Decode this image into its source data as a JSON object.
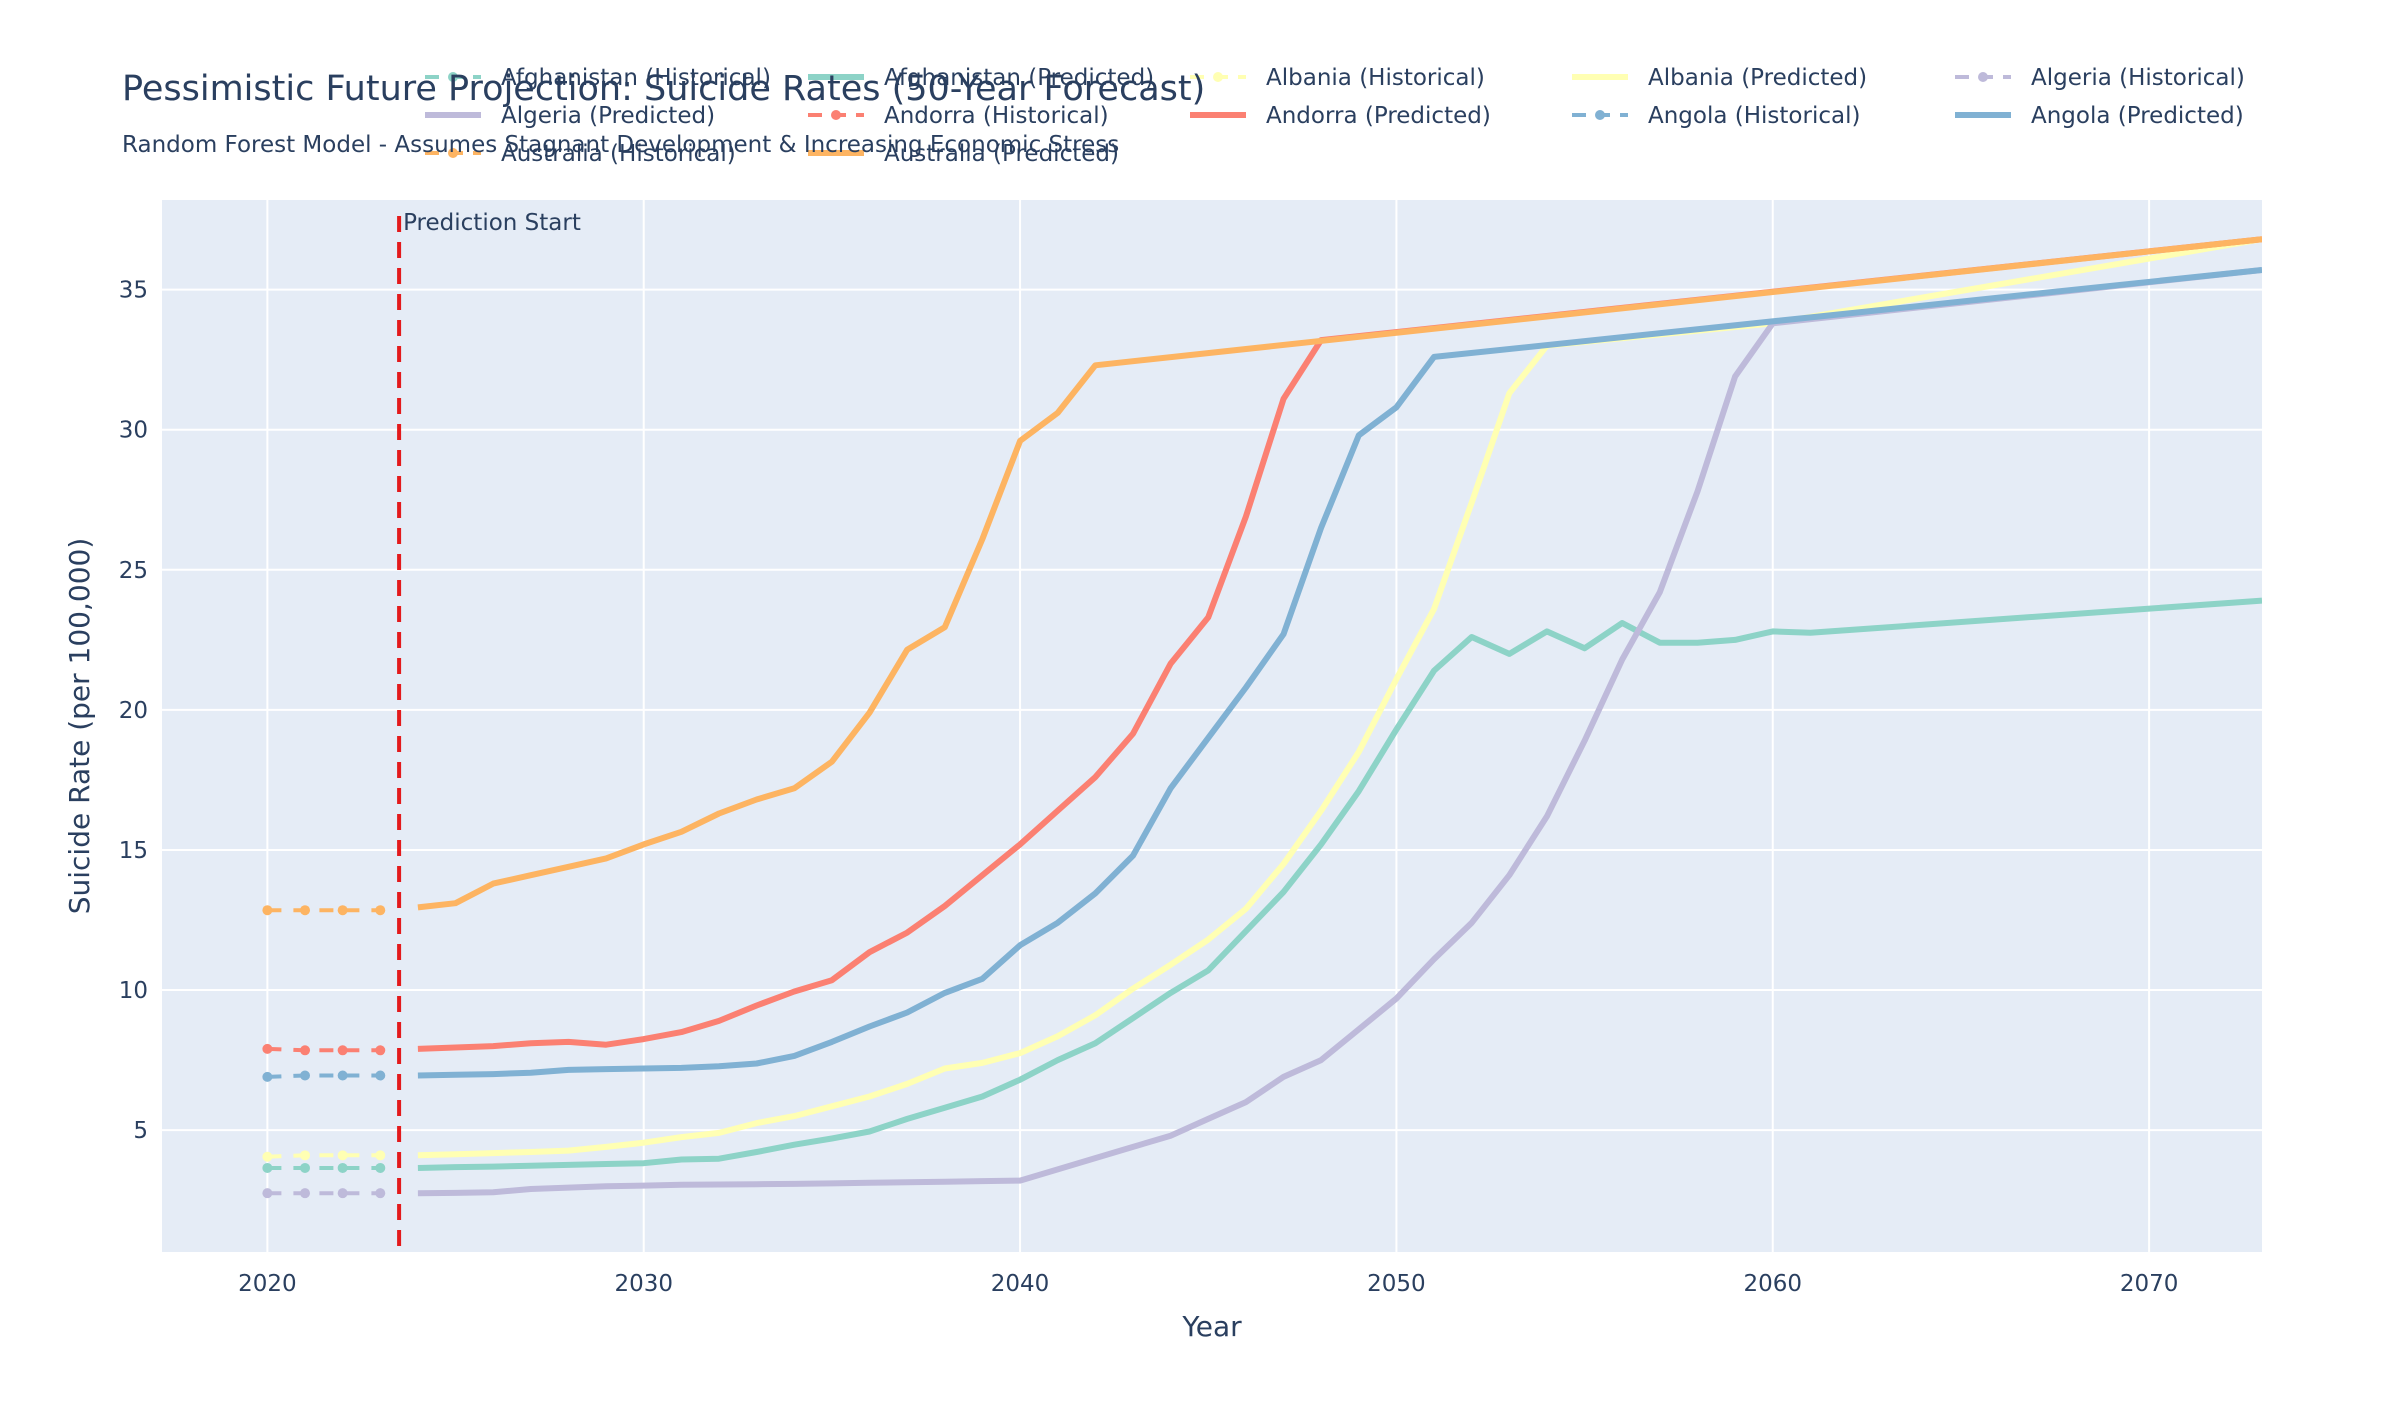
{
  "chart_data": {
    "type": "line",
    "title": "Pessimistic Future Projection: Suicide Rates (50-Year Forecast)",
    "subtitle": "Random Forest Model - Assumes Stagnant Development & Increasing Economic Stress",
    "xlabel": "Year",
    "ylabel": "Suicide Rate (per 100,000)",
    "xlim": [
      2017.2,
      2073.0
    ],
    "ylim": [
      0.65,
      38.2
    ],
    "x_ticks": [
      2020,
      2030,
      2040,
      2050,
      2060,
      2070
    ],
    "y_ticks": [
      5,
      10,
      15,
      20,
      25,
      30,
      35
    ],
    "grid": true,
    "legend_position": "top",
    "annotation": {
      "text": "Prediction Start",
      "x": 2023.5,
      "color": "#e31a1c"
    },
    "colors": {
      "background": "#e5ecf6",
      "grid": "#ffffff",
      "text": "#2a3f5f"
    },
    "series": [
      {
        "name": "Afghanistan (Historical)",
        "color": "#8dd3c7",
        "style": "historical",
        "x": [
          2020,
          2021,
          2022,
          2023
        ],
        "y": [
          3.65,
          3.65,
          3.65,
          3.65
        ]
      },
      {
        "name": "Afghanistan (Predicted)",
        "color": "#8dd3c7",
        "style": "predicted",
        "x": [
          2024,
          2025,
          2026,
          2027,
          2028,
          2029,
          2030,
          2031,
          2032,
          2033,
          2034,
          2035,
          2036,
          2037,
          2038,
          2039,
          2040,
          2041,
          2042,
          2043,
          2044,
          2045,
          2046,
          2047,
          2048,
          2049,
          2050,
          2051,
          2052,
          2053,
          2054,
          2055,
          2056,
          2057,
          2058,
          2059,
          2060,
          2061,
          2073
        ],
        "y": [
          3.65,
          3.68,
          3.7,
          3.73,
          3.76,
          3.79,
          3.82,
          3.95,
          3.98,
          4.22,
          4.48,
          4.7,
          4.95,
          5.4,
          5.8,
          6.2,
          6.8,
          7.5,
          8.1,
          9.0,
          9.9,
          10.7,
          12.1,
          13.5,
          15.2,
          17.1,
          19.3,
          21.4,
          22.6,
          22.0,
          22.8,
          22.2,
          23.1,
          22.4,
          22.4,
          22.5,
          22.8,
          22.75,
          23.9
        ]
      },
      {
        "name": "Albania (Historical)",
        "color": "#ffffb3",
        "style": "historical",
        "x": [
          2020,
          2021,
          2022,
          2023
        ],
        "y": [
          4.05,
          4.1,
          4.1,
          4.1
        ]
      },
      {
        "name": "Albania (Predicted)",
        "color": "#ffffb3",
        "style": "predicted",
        "x": [
          2024,
          2025,
          2026,
          2027,
          2028,
          2029,
          2030,
          2031,
          2032,
          2033,
          2034,
          2035,
          2036,
          2037,
          2038,
          2039,
          2040,
          2041,
          2042,
          2043,
          2044,
          2045,
          2046,
          2047,
          2048,
          2049,
          2050,
          2051,
          2052,
          2053,
          2054,
          2060,
          2073
        ],
        "y": [
          4.1,
          4.14,
          4.18,
          4.22,
          4.27,
          4.4,
          4.55,
          4.75,
          4.9,
          5.25,
          5.5,
          5.85,
          6.2,
          6.65,
          7.2,
          7.4,
          7.75,
          8.35,
          9.1,
          10.05,
          10.9,
          11.8,
          12.9,
          14.5,
          16.4,
          18.5,
          21.1,
          23.6,
          27.4,
          31.3,
          33.0,
          33.8,
          36.8
        ]
      },
      {
        "name": "Algeria (Historical)",
        "color": "#bebada",
        "style": "historical",
        "x": [
          2020,
          2021,
          2022,
          2023
        ],
        "y": [
          2.75,
          2.75,
          2.75,
          2.75
        ]
      },
      {
        "name": "Algeria (Predicted)",
        "color": "#bebada",
        "style": "predicted",
        "x": [
          2024,
          2025,
          2026,
          2027,
          2028,
          2029,
          2030,
          2031,
          2032,
          2033,
          2034,
          2035,
          2036,
          2037,
          2038,
          2039,
          2040,
          2041,
          2042,
          2043,
          2044,
          2045,
          2046,
          2047,
          2048,
          2049,
          2050,
          2051,
          2052,
          2053,
          2054,
          2055,
          2056,
          2057,
          2058,
          2059,
          2060,
          2073
        ],
        "y": [
          2.75,
          2.76,
          2.78,
          2.9,
          2.95,
          3.0,
          3.02,
          3.05,
          3.06,
          3.07,
          3.08,
          3.1,
          3.12,
          3.14,
          3.16,
          3.18,
          3.2,
          3.6,
          4.0,
          4.4,
          4.8,
          5.4,
          6.0,
          6.9,
          7.5,
          8.6,
          9.7,
          11.1,
          12.4,
          14.1,
          16.2,
          18.9,
          21.8,
          24.2,
          27.8,
          31.9,
          33.8,
          35.7
        ]
      },
      {
        "name": "Andorra (Historical)",
        "color": "#fb8072",
        "style": "historical",
        "x": [
          2020,
          2021,
          2022,
          2023
        ],
        "y": [
          7.9,
          7.85,
          7.85,
          7.85
        ]
      },
      {
        "name": "Andorra (Predicted)",
        "color": "#fb8072",
        "style": "predicted",
        "x": [
          2024,
          2025,
          2026,
          2027,
          2028,
          2029,
          2030,
          2031,
          2032,
          2033,
          2034,
          2035,
          2036,
          2037,
          2038,
          2039,
          2040,
          2041,
          2042,
          2043,
          2044,
          2045,
          2046,
          2047,
          2048,
          2073
        ],
        "y": [
          7.9,
          7.95,
          8.0,
          8.1,
          8.15,
          8.05,
          8.25,
          8.5,
          8.9,
          9.45,
          9.95,
          10.35,
          11.35,
          12.05,
          13.0,
          14.1,
          15.2,
          16.4,
          17.6,
          19.15,
          21.65,
          23.3,
          26.9,
          31.1,
          33.2,
          36.8
        ]
      },
      {
        "name": "Angola (Historical)",
        "color": "#80b1d3",
        "style": "historical",
        "x": [
          2020,
          2021,
          2022,
          2023
        ],
        "y": [
          6.9,
          6.95,
          6.95,
          6.95
        ]
      },
      {
        "name": "Angola (Predicted)",
        "color": "#80b1d3",
        "style": "predicted",
        "x": [
          2024,
          2025,
          2026,
          2027,
          2028,
          2029,
          2030,
          2031,
          2032,
          2033,
          2034,
          2035,
          2036,
          2037,
          2038,
          2039,
          2040,
          2041,
          2042,
          2043,
          2044,
          2045,
          2046,
          2047,
          2048,
          2049,
          2050,
          2051,
          2073
        ],
        "y": [
          6.95,
          6.98,
          7.0,
          7.05,
          7.15,
          7.18,
          7.2,
          7.22,
          7.28,
          7.38,
          7.65,
          8.15,
          8.7,
          9.2,
          9.9,
          10.4,
          11.6,
          12.4,
          13.45,
          14.8,
          17.2,
          19.0,
          20.8,
          22.7,
          26.5,
          29.8,
          30.8,
          32.6,
          35.7
        ]
      },
      {
        "name": "Australia (Historical)",
        "color": "#fdb462",
        "style": "historical",
        "x": [
          2020,
          2021,
          2022,
          2023
        ],
        "y": [
          12.85,
          12.85,
          12.85,
          12.85
        ]
      },
      {
        "name": "Australia (Predicted)",
        "color": "#fdb462",
        "style": "predicted",
        "x": [
          2024,
          2025,
          2026,
          2027,
          2028,
          2029,
          2030,
          2031,
          2032,
          2033,
          2034,
          2035,
          2036,
          2037,
          2038,
          2039,
          2040,
          2041,
          2042,
          2073
        ],
        "y": [
          12.95,
          13.1,
          13.8,
          14.1,
          14.4,
          14.7,
          15.2,
          15.65,
          16.3,
          16.8,
          17.2,
          18.15,
          19.9,
          22.15,
          22.95,
          26.1,
          29.6,
          30.6,
          32.3,
          36.8
        ]
      }
    ]
  }
}
